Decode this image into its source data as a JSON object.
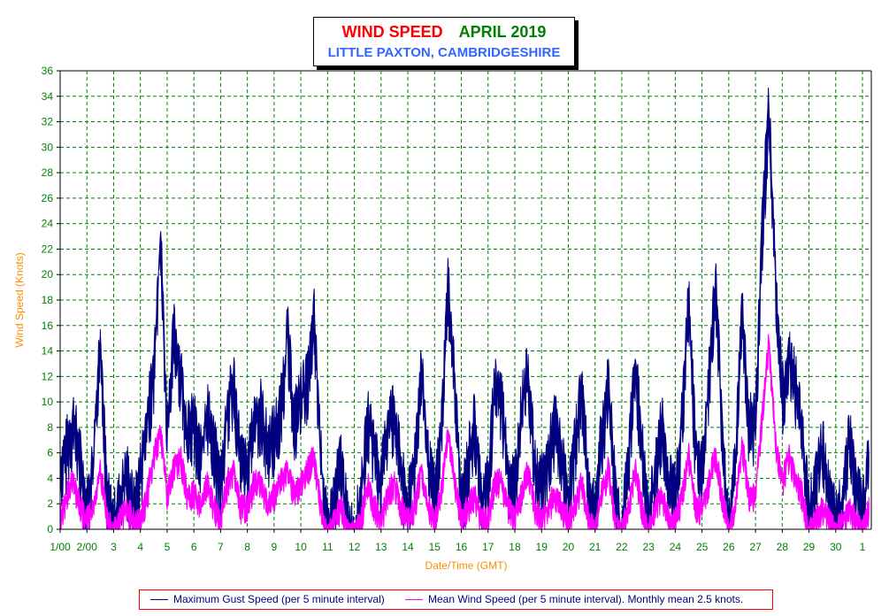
{
  "header": {
    "title": "WIND SPEED",
    "month": "APRIL 2019",
    "location": "LITTLE PAXTON, CAMBRIDGESHIRE"
  },
  "legend": {
    "gust": "Maximum Gust Speed (per 5 minute interval)",
    "mean": "Mean Wind Speed (per 5 minute interval). Monthly mean 2.5 knots."
  },
  "colors": {
    "gust": "#000080",
    "mean": "#ff00ff",
    "grid": "#008000",
    "ticks": "#008000",
    "axis_label": "#ff8c00"
  },
  "chart_data": {
    "type": "area",
    "xlabel": "Date/Time (GMT)",
    "ylabel": "Wind Speed (Knots)",
    "xlim": [
      1,
      31.33
    ],
    "ylim": [
      0,
      36
    ],
    "y_ticks": [
      0,
      2,
      4,
      6,
      8,
      10,
      12,
      14,
      16,
      18,
      20,
      22,
      24,
      26,
      28,
      30,
      32,
      34,
      36
    ],
    "x_tick_values": [
      1,
      2,
      3,
      4,
      5,
      6,
      7,
      8,
      9,
      10,
      11,
      12,
      13,
      14,
      15,
      16,
      17,
      18,
      19,
      20,
      21,
      22,
      23,
      24,
      25,
      26,
      27,
      28,
      29,
      30,
      31
    ],
    "x_tick_labels": [
      "1/00",
      "2/00",
      "3",
      "4",
      "5",
      "6",
      "7",
      "8",
      "9",
      "10",
      "11",
      "12",
      "13",
      "14",
      "15",
      "16",
      "17",
      "18",
      "19",
      "20",
      "21",
      "22",
      "23",
      "24",
      "25",
      "26",
      "27",
      "28",
      "29",
      "30",
      "1"
    ],
    "grid": true,
    "legend_position": "bottom",
    "series": [
      {
        "name": "Maximum Gust Speed (per 5 minute interval)",
        "x": [
          1.0,
          1.25,
          1.5,
          1.75,
          2.0,
          2.25,
          2.5,
          2.75,
          3.0,
          3.25,
          3.5,
          3.75,
          4.0,
          4.25,
          4.5,
          4.75,
          5.0,
          5.25,
          5.5,
          5.75,
          6.0,
          6.25,
          6.5,
          6.75,
          7.0,
          7.25,
          7.5,
          7.75,
          8.0,
          8.25,
          8.5,
          8.75,
          9.0,
          9.25,
          9.5,
          9.75,
          10.0,
          10.25,
          10.5,
          10.75,
          11.0,
          11.25,
          11.5,
          11.75,
          12.0,
          12.25,
          12.5,
          12.75,
          13.0,
          13.25,
          13.5,
          13.75,
          14.0,
          14.25,
          14.5,
          14.75,
          15.0,
          15.25,
          15.5,
          15.75,
          16.0,
          16.25,
          16.5,
          16.75,
          17.0,
          17.25,
          17.5,
          17.75,
          18.0,
          18.25,
          18.5,
          18.75,
          19.0,
          19.25,
          19.5,
          19.75,
          20.0,
          20.25,
          20.5,
          20.75,
          21.0,
          21.25,
          21.5,
          21.75,
          22.0,
          22.25,
          22.5,
          22.75,
          23.0,
          23.25,
          23.5,
          23.75,
          24.0,
          24.25,
          24.5,
          24.75,
          25.0,
          25.25,
          25.5,
          25.75,
          26.0,
          26.25,
          26.5,
          26.75,
          27.0,
          27.25,
          27.5,
          27.75,
          28.0,
          28.25,
          28.5,
          28.75,
          29.0,
          29.25,
          29.5,
          29.75,
          30.0,
          30.25,
          30.5,
          30.75,
          31.0,
          31.25
        ],
        "values": [
          5,
          7,
          9,
          6,
          2,
          6,
          16,
          3,
          1,
          3,
          5,
          2,
          5,
          9,
          13,
          24,
          8,
          16,
          13,
          8,
          9,
          6,
          10,
          7,
          4,
          10,
          12,
          6,
          5,
          9,
          10,
          7,
          8,
          10,
          16,
          9,
          11,
          12,
          17,
          6,
          0,
          3,
          6,
          1,
          0,
          3,
          9,
          7,
          4,
          9,
          10,
          5,
          2,
          6,
          13,
          6,
          3,
          8,
          20,
          12,
          2,
          6,
          9,
          3,
          4,
          12,
          11,
          5,
          4,
          10,
          13,
          5,
          4,
          6,
          9,
          6,
          3,
          7,
          12,
          4,
          2,
          8,
          12,
          4,
          0,
          6,
          14,
          7,
          1,
          5,
          9,
          4,
          4,
          9,
          19,
          7,
          5,
          12,
          20,
          9,
          0,
          6,
          18,
          9,
          9,
          24,
          34,
          20,
          11,
          14,
          12,
          8,
          2,
          4,
          7,
          3,
          1,
          3,
          8,
          4,
          2,
          6
        ]
      },
      {
        "name": "Mean Wind Speed (per 5 minute interval). Monthly mean 2.5 knots.",
        "x": [
          1.0,
          1.25,
          1.5,
          1.75,
          2.0,
          2.25,
          2.5,
          2.75,
          3.0,
          3.25,
          3.5,
          3.75,
          4.0,
          4.25,
          4.5,
          4.75,
          5.0,
          5.25,
          5.5,
          5.75,
          6.0,
          6.25,
          6.5,
          6.75,
          7.0,
          7.25,
          7.5,
          7.75,
          8.0,
          8.25,
          8.5,
          8.75,
          9.0,
          9.25,
          9.5,
          9.75,
          10.0,
          10.25,
          10.5,
          10.75,
          11.0,
          11.25,
          11.5,
          11.75,
          12.0,
          12.25,
          12.5,
          12.75,
          13.0,
          13.25,
          13.5,
          13.75,
          14.0,
          14.25,
          14.5,
          14.75,
          15.0,
          15.25,
          15.5,
          15.75,
          16.0,
          16.25,
          16.5,
          16.75,
          17.0,
          17.25,
          17.5,
          17.75,
          18.0,
          18.25,
          18.5,
          18.75,
          19.0,
          19.25,
          19.5,
          19.75,
          20.0,
          20.25,
          20.5,
          20.75,
          21.0,
          21.25,
          21.5,
          21.75,
          22.0,
          22.25,
          22.5,
          22.75,
          23.0,
          23.25,
          23.5,
          23.75,
          24.0,
          24.25,
          24.5,
          24.75,
          25.0,
          25.25,
          25.5,
          25.75,
          26.0,
          26.25,
          26.5,
          26.75,
          27.0,
          27.25,
          27.5,
          27.75,
          28.0,
          28.25,
          28.5,
          28.75,
          29.0,
          29.25,
          29.5,
          29.75,
          30.0,
          30.25,
          30.5,
          30.75,
          31.0,
          31.25
        ],
        "values": [
          1,
          3,
          4,
          2,
          1,
          2,
          5,
          1,
          0,
          1,
          2,
          1,
          1,
          3,
          6,
          8,
          3,
          5,
          6,
          3,
          3,
          2,
          4,
          2,
          1,
          4,
          5,
          2,
          2,
          4,
          4,
          2,
          3,
          4,
          5,
          3,
          4,
          5,
          6,
          2,
          0,
          1,
          2,
          0,
          0,
          1,
          4,
          2,
          1,
          3,
          4,
          2,
          1,
          2,
          5,
          2,
          1,
          3,
          8,
          4,
          1,
          2,
          3,
          1,
          1,
          4,
          4,
          2,
          1,
          3,
          5,
          2,
          1,
          2,
          3,
          2,
          1,
          2,
          4,
          1,
          0,
          3,
          5,
          1,
          0,
          2,
          5,
          2,
          0,
          2,
          3,
          1,
          1,
          3,
          6,
          2,
          2,
          4,
          6,
          3,
          0,
          2,
          7,
          3,
          3,
          9,
          15,
          7,
          4,
          6,
          4,
          3,
          0,
          1,
          2,
          1,
          0,
          1,
          2,
          1,
          0,
          2
        ]
      }
    ]
  }
}
